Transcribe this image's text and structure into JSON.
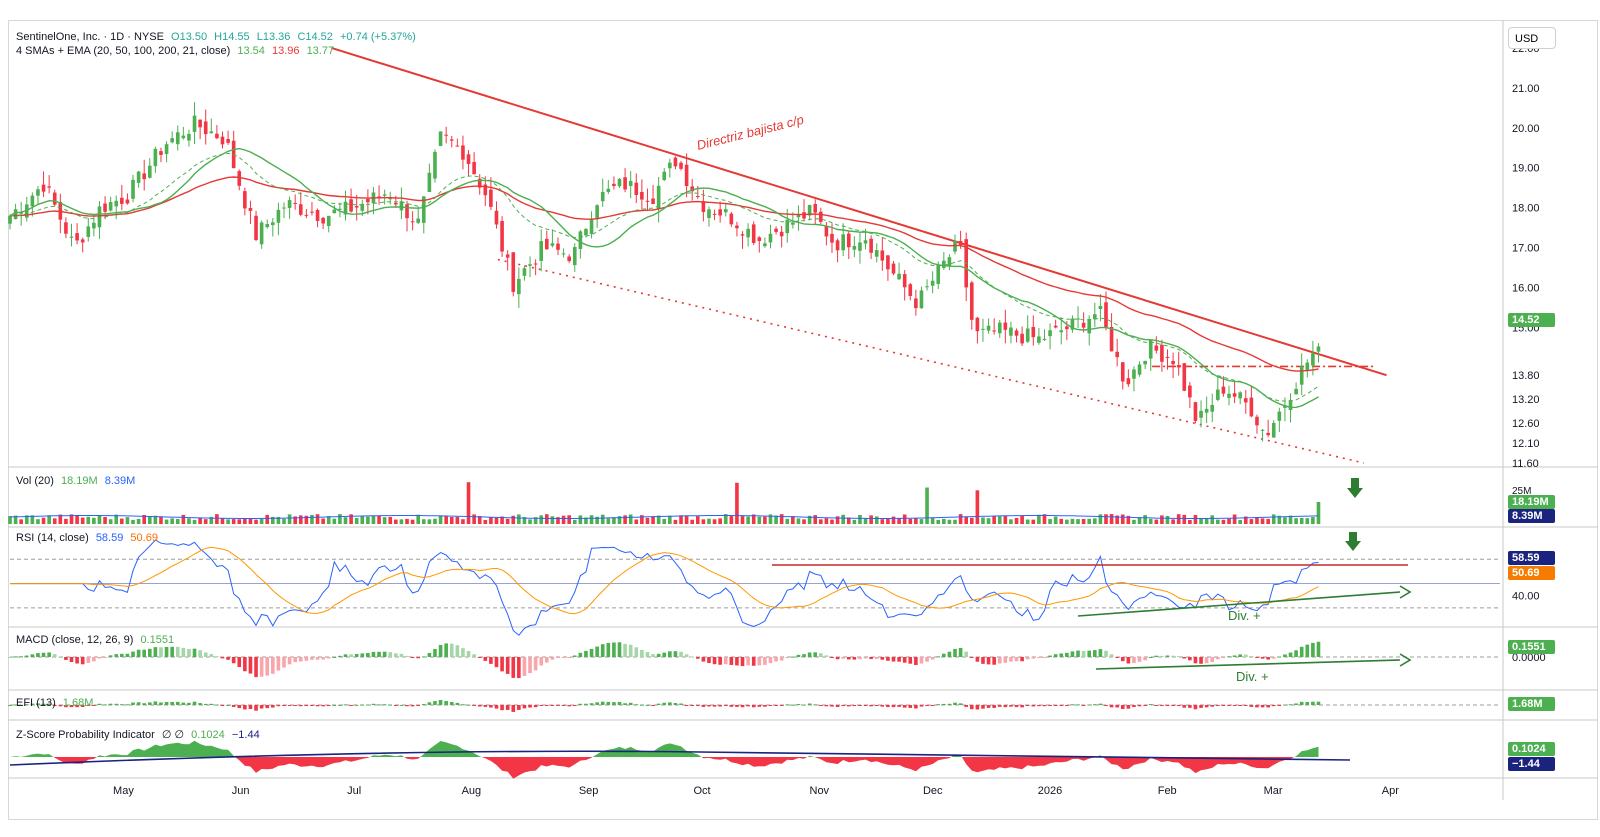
{
  "header": {
    "symbol": "SentinelOne, Inc. · 1D · NYSE",
    "open": "O13.50",
    "high": "H14.55",
    "low": "L13.36",
    "close": "C14.52",
    "change": "+0.74 (+5.37%)",
    "ma_label": "4 SMAs + EMA (20, 50, 100, 200, 21, close)",
    "ma_val_1": "13.54",
    "ma_val_2": "13.96",
    "ma_val_3": "13.77",
    "currency": "USD"
  },
  "price_axis": {
    "ticks": [
      "22.00",
      "21.00",
      "20.00",
      "19.00",
      "18.00",
      "17.00",
      "16.00",
      "15.00",
      "13.80",
      "13.20",
      "12.60",
      "12.10",
      "11.60"
    ],
    "last_price": "14.52",
    "last_price_color": "#26a69a"
  },
  "annotations": {
    "trendline": "Directriz bajista c/p",
    "div_rsi": "Div. +",
    "div_macd": "Div. +"
  },
  "volume": {
    "label": "Vol (20)",
    "v1": "18.19M",
    "v2": "8.39M",
    "tick": "25M",
    "box1": "18.19M",
    "box2": "8.39M"
  },
  "rsi": {
    "label": "RSI (14, close)",
    "v1": "58.59",
    "v2": "50.69",
    "tick": "40.00",
    "box1": "58.59",
    "box2": "50.69"
  },
  "macd": {
    "label": "MACD (close, 12, 26, 9)",
    "v1": "0.1551",
    "tick": "0.0000",
    "box1": "0.1551"
  },
  "efi": {
    "label": "EFI (13)",
    "v1": "1.68M",
    "box1": "1.68M"
  },
  "zscore": {
    "label": "Z-Score Probability Indicator",
    "sym": "∅ ∅",
    "v1": "0.1024",
    "v2": "−1.44",
    "box1": "0.1024",
    "box2": "−1.44"
  },
  "time_axis": [
    "May",
    "Jun",
    "Jul",
    "Aug",
    "Sep",
    "Oct",
    "Nov",
    "Dec",
    "2026",
    "Feb",
    "Mar",
    "Apr"
  ],
  "colors": {
    "up": "#4caf50",
    "down": "#f23645",
    "ema": "#e53935",
    "sma": "#4caf50",
    "rsi": "#2962ff",
    "rsi_ma": "#ff9800",
    "zline": "#1a237e"
  },
  "chart_data": {
    "type": "candlestick",
    "title": "SentinelOne, Inc. · 1D · NYSE",
    "ylim": [
      11.6,
      22.2
    ],
    "x_range": [
      "2025-04-01",
      "2026-04-30"
    ],
    "trendlines": [
      {
        "name": "Directriz bajista c/p",
        "from": [
          "2025-06-25",
          22.0
        ],
        "to": [
          "2026-03-31",
          13.8
        ],
        "style": "solid"
      },
      {
        "name": "",
        "from": [
          "2025-08-08",
          16.7
        ],
        "to": [
          "2026-03-25",
          11.6
        ],
        "style": "dotted"
      },
      {
        "name": "",
        "from": [
          "2026-01-28",
          14.02
        ],
        "to": [
          "2026-03-28",
          14.02
        ],
        "style": "dash-dot"
      }
    ],
    "close_path": [
      [
        "2025-04-01",
        17.8
      ],
      [
        "2025-04-10",
        18.6
      ],
      [
        "2025-04-18",
        17.0
      ],
      [
        "2025-04-25",
        18.0
      ],
      [
        "2025-05-02",
        18.3
      ],
      [
        "2025-05-12",
        19.6
      ],
      [
        "2025-05-20",
        20.1
      ],
      [
        "2025-05-28",
        19.7
      ],
      [
        "2025-06-05",
        17.3
      ],
      [
        "2025-06-13",
        18.1
      ],
      [
        "2025-06-23",
        17.8
      ],
      [
        "2025-07-01",
        18.0
      ],
      [
        "2025-07-10",
        18.4
      ],
      [
        "2025-07-18",
        17.6
      ],
      [
        "2025-07-24",
        19.8
      ],
      [
        "2025-07-30",
        19.4
      ],
      [
        "2025-08-05",
        18.3
      ],
      [
        "2025-08-12",
        16.1
      ],
      [
        "2025-08-20",
        17.0
      ],
      [
        "2025-08-28",
        16.8
      ],
      [
        "2025-09-03",
        18.2
      ],
      [
        "2025-09-10",
        18.6
      ],
      [
        "2025-09-18",
        18.3
      ],
      [
        "2025-09-24",
        19.2
      ],
      [
        "2025-10-01",
        18.1
      ],
      [
        "2025-10-08",
        17.8
      ],
      [
        "2025-10-16",
        17.2
      ],
      [
        "2025-10-24",
        17.6
      ],
      [
        "2025-10-30",
        17.9
      ],
      [
        "2025-11-05",
        17.1
      ],
      [
        "2025-11-13",
        17.3
      ],
      [
        "2025-11-20",
        16.4
      ],
      [
        "2025-11-27",
        15.6
      ],
      [
        "2025-12-04",
        16.6
      ],
      [
        "2025-12-08",
        17.1
      ],
      [
        "2025-12-12",
        14.8
      ],
      [
        "2025-12-19",
        14.9
      ],
      [
        "2025-12-29",
        14.7
      ],
      [
        "2026-01-06",
        15.0
      ],
      [
        "2026-01-14",
        15.4
      ],
      [
        "2026-01-21",
        13.6
      ],
      [
        "2026-01-27",
        14.5
      ],
      [
        "2026-02-03",
        14.2
      ],
      [
        "2026-02-09",
        12.6
      ],
      [
        "2026-02-16",
        13.5
      ],
      [
        "2026-02-23",
        13.0
      ],
      [
        "2026-02-27",
        12.3
      ],
      [
        "2026-03-04",
        13.1
      ],
      [
        "2026-03-09",
        14.0
      ],
      [
        "2026-03-13",
        14.52
      ]
    ],
    "series": [
      {
        "name": "EMA",
        "values_note": "13.96"
      },
      {
        "name": "SMA 20",
        "values_note": "13.54"
      },
      {
        "name": "SMA 50",
        "values_note": "13.77"
      }
    ]
  }
}
